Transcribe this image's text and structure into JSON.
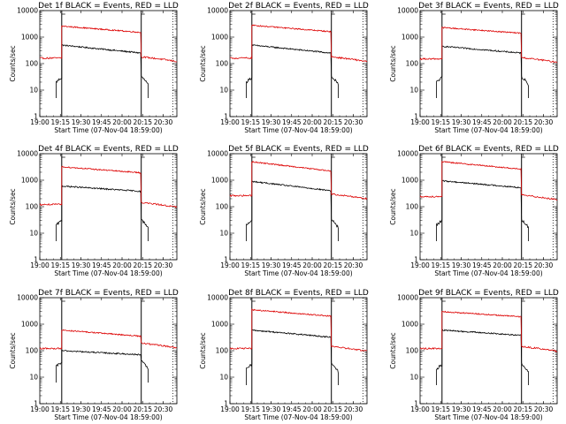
{
  "colors": {
    "events": "#000000",
    "lld": "#dd0000",
    "background": "#ffffff"
  },
  "chart_data": {
    "type": "line",
    "y_log_scale": true,
    "ylim": [
      1,
      10000
    ],
    "xlim": [
      "19:00",
      "20:40"
    ],
    "ylabel": "Counts/sec",
    "xlabel": "Start Time (07-Nov-04 18:59:00)",
    "x_tick_labels": [
      "19:00",
      "19:15",
      "19:30",
      "19:45",
      "20:00",
      "20:15",
      "20:30"
    ],
    "y_tick_labels": [
      "1",
      "10",
      "100",
      "1000",
      "10000"
    ],
    "grid": false,
    "panels": [
      {
        "title": "Det 1f BLACK = Events, RED = LLD",
        "series": [
          {
            "name": "Events",
            "color": "black",
            "values": {
              "pre": 20,
              "rise_start": 500,
              "rise_end": 250,
              "post": 20
            }
          },
          {
            "name": "LLD",
            "color": "red",
            "values": {
              "pre": 160,
              "rise_start": 2600,
              "rise_end": 1500,
              "post": 150
            }
          }
        ]
      },
      {
        "title": "Det 2f BLACK = Events, RED = LLD",
        "series": [
          {
            "name": "Events",
            "color": "black",
            "values": {
              "pre": 20,
              "rise_start": 500,
              "rise_end": 250,
              "post": 20
            }
          },
          {
            "name": "LLD",
            "color": "red",
            "values": {
              "pre": 160,
              "rise_start": 2800,
              "rise_end": 1600,
              "post": 150
            }
          }
        ]
      },
      {
        "title": "Det 3f BLACK = Events, RED = LLD",
        "series": [
          {
            "name": "Events",
            "color": "black",
            "values": {
              "pre": 20,
              "rise_start": 450,
              "rise_end": 250,
              "post": 20
            }
          },
          {
            "name": "LLD",
            "color": "red",
            "values": {
              "pre": 150,
              "rise_start": 2300,
              "rise_end": 1400,
              "post": 140
            }
          }
        ]
      },
      {
        "title": "Det 4f BLACK = Events, RED = LLD",
        "series": [
          {
            "name": "Events",
            "color": "black",
            "values": {
              "pre": 20,
              "rise_start": 600,
              "rise_end": 380,
              "post": 20
            }
          },
          {
            "name": "LLD",
            "color": "red",
            "values": {
              "pre": 120,
              "rise_start": 3200,
              "rise_end": 1900,
              "post": 120
            }
          }
        ]
      },
      {
        "title": "Det 5f BLACK = Events, RED = LLD",
        "series": [
          {
            "name": "Events",
            "color": "black",
            "values": {
              "pre": 20,
              "rise_start": 900,
              "rise_end": 400,
              "post": 20
            }
          },
          {
            "name": "LLD",
            "color": "red",
            "values": {
              "pre": 260,
              "rise_start": 5000,
              "rise_end": 2200,
              "post": 250
            }
          }
        ]
      },
      {
        "title": "Det 6f BLACK = Events, RED = LLD",
        "series": [
          {
            "name": "Events",
            "color": "black",
            "values": {
              "pre": 20,
              "rise_start": 950,
              "rise_end": 520,
              "post": 20
            }
          },
          {
            "name": "LLD",
            "color": "red",
            "values": {
              "pre": 240,
              "rise_start": 5000,
              "rise_end": 2600,
              "post": 230
            }
          }
        ]
      },
      {
        "title": "Det 7f BLACK = Events, RED = LLD",
        "series": [
          {
            "name": "Events",
            "color": "black",
            "values": {
              "pre": 25,
              "rise_start": 100,
              "rise_end": 70,
              "post": 25
            }
          },
          {
            "name": "LLD",
            "color": "red",
            "values": {
              "pre": 120,
              "rise_start": 600,
              "rise_end": 350,
              "post": 160
            }
          }
        ]
      },
      {
        "title": "Det 8f BLACK = Events, RED = LLD",
        "series": [
          {
            "name": "Events",
            "color": "black",
            "values": {
              "pre": 20,
              "rise_start": 600,
              "rise_end": 320,
              "post": 20
            }
          },
          {
            "name": "LLD",
            "color": "red",
            "values": {
              "pre": 120,
              "rise_start": 3500,
              "rise_end": 2000,
              "post": 120
            }
          }
        ]
      },
      {
        "title": "Det 9f BLACK = Events, RED = LLD",
        "series": [
          {
            "name": "Events",
            "color": "black",
            "values": {
              "pre": 20,
              "rise_start": 600,
              "rise_end": 380,
              "post": 20
            }
          },
          {
            "name": "LLD",
            "color": "red",
            "values": {
              "pre": 120,
              "rise_start": 3000,
              "rise_end": 1900,
              "post": 120
            }
          }
        ]
      }
    ]
  }
}
